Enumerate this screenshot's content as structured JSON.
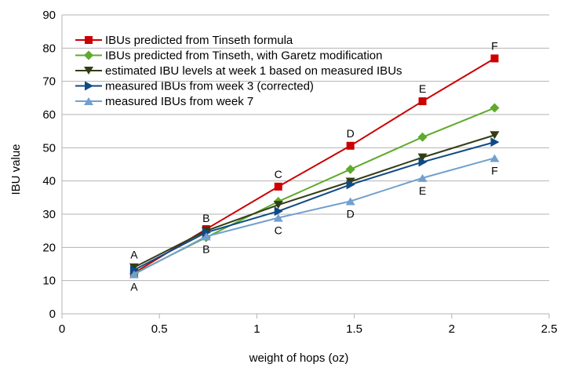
{
  "chart_data": {
    "type": "line",
    "title": "",
    "xlabel": "weight of hops (oz)",
    "ylabel": "IBU value",
    "xlim": [
      0,
      2.5
    ],
    "ylim": [
      0,
      90
    ],
    "x_ticks": [
      "0",
      "0.5",
      "1",
      "1.5",
      "2",
      "2.5"
    ],
    "x_tick_values": [
      0,
      0.5,
      1,
      1.5,
      2,
      2.5
    ],
    "y_ticks": [
      "0",
      "10",
      "20",
      "30",
      "40",
      "50",
      "60",
      "70",
      "80",
      "90"
    ],
    "y_tick_values": [
      0,
      10,
      20,
      30,
      40,
      50,
      60,
      70,
      80,
      90
    ],
    "grid": "horizontal",
    "legend_position": "top-left",
    "x": [
      0.37,
      0.74,
      1.11,
      1.48,
      1.85,
      2.22
    ],
    "series": [
      {
        "name": "IBUs predicted from Tinseth formula",
        "color": "#cc0000",
        "marker": "square",
        "values": [
          12.3,
          25.5,
          38.3,
          50.6,
          64.0,
          76.9
        ],
        "point_labels": [
          "",
          "",
          "C",
          "D",
          "E",
          "F"
        ],
        "label_position": "above"
      },
      {
        "name": "IBUs predicted from Tinseth, with Garetz modification",
        "color": "#5faa2b",
        "marker": "diamond",
        "values": [
          12.1,
          23.0,
          33.8,
          43.5,
          53.2,
          62.0
        ],
        "point_labels": [],
        "label_position": "above"
      },
      {
        "name": "estimated IBU levels at week 1 based on measured IBUs",
        "color": "#333d15",
        "marker": "triangle-down",
        "values": [
          14.0,
          25.0,
          32.8,
          39.8,
          47.1,
          53.8
        ],
        "point_labels": [
          "A",
          "B",
          "",
          "",
          "",
          ""
        ],
        "label_position": "above"
      },
      {
        "name": "measured IBUs from week 3 (corrected)",
        "color": "#0e4a86",
        "marker": "triangle-right",
        "values": [
          13.2,
          24.5,
          30.9,
          38.9,
          45.7,
          51.7
        ],
        "point_labels": [],
        "label_position": "above"
      },
      {
        "name": "measured IBUs from week 7",
        "color": "#729fcf",
        "marker": "triangle-up",
        "values": [
          11.9,
          23.3,
          28.9,
          33.9,
          40.9,
          46.9
        ],
        "point_labels": [
          "A",
          "B",
          "C",
          "D",
          "E",
          "F"
        ],
        "label_position": "below"
      }
    ]
  }
}
